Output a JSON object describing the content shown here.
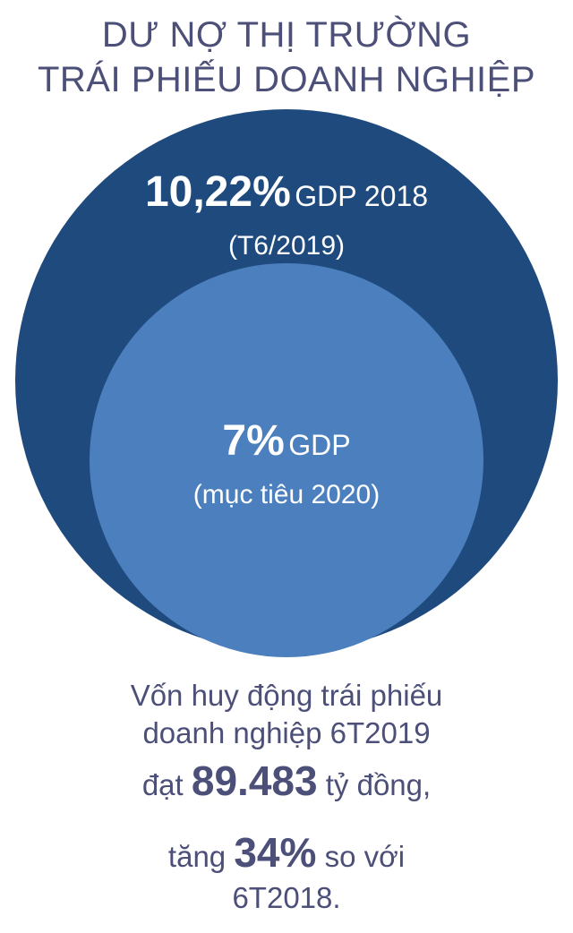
{
  "title": {
    "line1": "DƯ NỢ THỊ TRƯỜNG",
    "line2": "TRÁI PHIẾU DOANH NGHIỆP"
  },
  "outer_circle": {
    "value": "10,22%",
    "unit": "GDP 2018",
    "note": "(T6/2019)",
    "color": "#1f4a7e"
  },
  "inner_circle": {
    "value": "7%",
    "unit": "GDP",
    "note": "(mục tiêu 2020)",
    "color": "#4c7fbd"
  },
  "summary": {
    "line1": "Vốn huy động trái phiếu",
    "line2": "doanh nghiệp 6T2019",
    "line3_prefix": "đạt",
    "line3_value": "89.483",
    "line3_suffix": "tỷ đồng,",
    "line4_prefix": "tăng",
    "line4_value": "34%",
    "line4_suffix": "so với",
    "line5": "6T2018."
  }
}
